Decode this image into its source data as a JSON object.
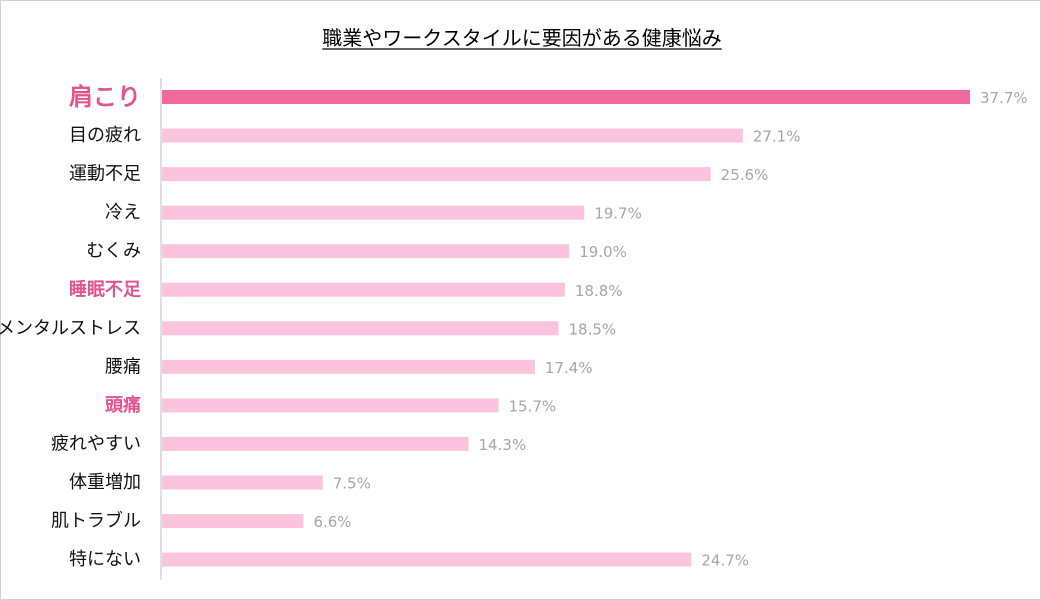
{
  "chart_data": {
    "type": "bar",
    "orientation": "horizontal",
    "title": "職業やワークスタイルに要因がある健康悩み",
    "xlabel": "",
    "ylabel": "",
    "xlim": [
      0,
      37.7
    ],
    "grid": false,
    "legend": "none",
    "categories": [
      "肩こり",
      "目の疲れ",
      "運動不足",
      "冷え",
      "むくみ",
      "睡眠不足",
      "メンタルストレス",
      "腰痛",
      "頭痛",
      "疲れやすい",
      "体重増加",
      "肌トラブル",
      "特にない"
    ],
    "values": [
      37.7,
      27.1,
      25.6,
      19.7,
      19.0,
      18.8,
      18.5,
      17.4,
      15.7,
      14.3,
      7.5,
      6.6,
      24.7
    ],
    "value_labels": [
      "37.7%",
      "27.1%",
      "25.6%",
      "19.7%",
      "19.0%",
      "18.8%",
      "18.5%",
      "17.4%",
      "15.7%",
      "14.3%",
      "7.5%",
      "6.6%",
      "24.7%"
    ],
    "highlighted": [
      "肩こり",
      "睡眠不足",
      "頭痛"
    ],
    "emphasized": [
      "肩こり"
    ],
    "colors": {
      "primary_bar": "#f06a9c",
      "bar": "#fbc3dc",
      "highlight_text": "#e4558e",
      "value_text": "#a6a6a6",
      "axis": "#bfbfbf"
    }
  }
}
